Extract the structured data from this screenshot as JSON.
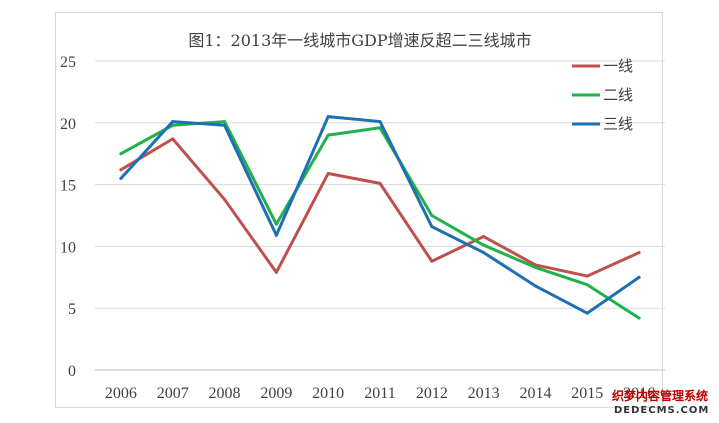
{
  "chart_data": {
    "type": "line",
    "title": "图1：2013年一线城市GDP增速反超二三线城市",
    "xlabel": "",
    "ylabel": "",
    "categories": [
      "2006",
      "2007",
      "2008",
      "2009",
      "2010",
      "2011",
      "2012",
      "2013",
      "2014",
      "2015",
      "2016"
    ],
    "ylim": [
      0,
      25
    ],
    "yticks": [
      "0",
      "5",
      "10",
      "15",
      "20",
      "25"
    ],
    "grid": true,
    "legend_position": "top-right",
    "series": [
      {
        "name": "一线",
        "color": "#c0504d",
        "values": [
          16.2,
          18.7,
          13.8,
          7.9,
          15.9,
          15.1,
          8.8,
          10.8,
          8.5,
          7.6,
          9.5
        ]
      },
      {
        "name": "二线",
        "color": "#21b14b",
        "values": [
          17.5,
          19.8,
          20.1,
          11.8,
          19.0,
          19.6,
          12.5,
          10.1,
          8.3,
          6.9,
          4.2
        ]
      },
      {
        "name": "三线",
        "color": "#1f6fb4",
        "values": [
          15.5,
          20.1,
          19.8,
          10.9,
          20.5,
          20.1,
          11.6,
          9.5,
          6.8,
          4.6,
          7.5
        ]
      }
    ]
  },
  "watermark": {
    "line1": "织梦内容管理系统",
    "line2": "DEDECMS.COM"
  }
}
